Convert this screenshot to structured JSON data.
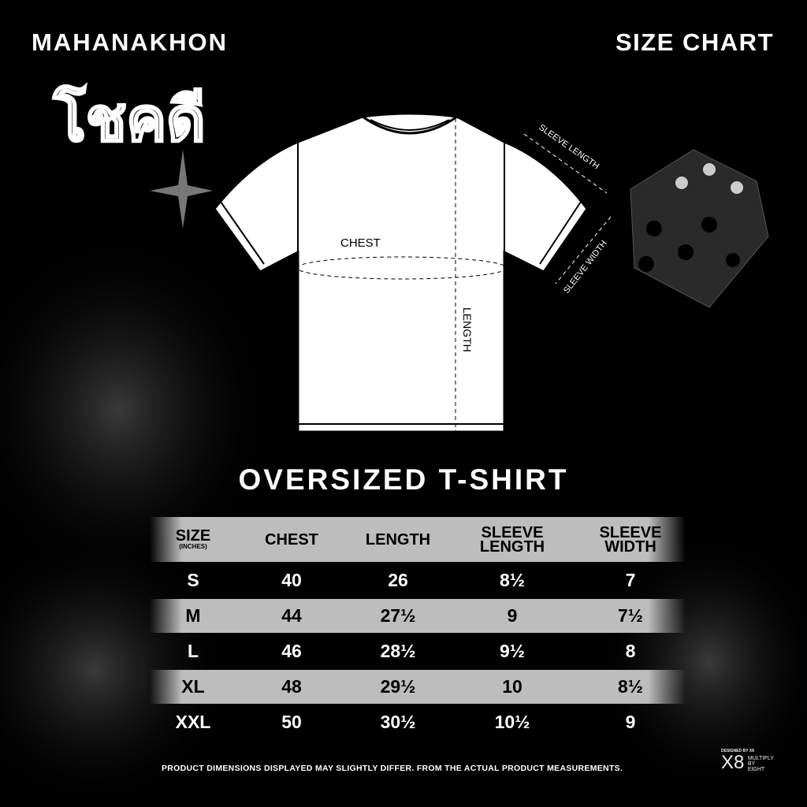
{
  "brand": "MAHANAKHON",
  "thai_logo": "โชคดี",
  "title": "SIZE CHART",
  "diagram_labels": {
    "chest": "CHEST",
    "length": "LENGTH",
    "sleeve_length": "SLEEVE LENGTH",
    "sleeve_width": "SLEEVE WIDTH"
  },
  "product": "OVERSIZED T-SHIRT",
  "table": {
    "headers": [
      {
        "label": "SIZE",
        "sub": "(INCHES)"
      },
      {
        "label": "CHEST"
      },
      {
        "label": "LENGTH"
      },
      {
        "label": "SLEEVE",
        "label2": "LENGTH"
      },
      {
        "label": "SLEEVE",
        "label2": "WIDTH"
      }
    ],
    "rows": [
      [
        "S",
        "40",
        "26",
        "8½",
        "7"
      ],
      [
        "M",
        "44",
        "27½",
        "9",
        "7½"
      ],
      [
        "L",
        "46",
        "28½",
        "9½",
        "8"
      ],
      [
        "XL",
        "48",
        "29½",
        "10",
        "8½"
      ],
      [
        "XXL",
        "50",
        "30½",
        "10½",
        "9"
      ]
    ]
  },
  "note": "PRODUCT DIMENSIONS DISPLAYED MAY SLIGHTLY DIFFER. FROM THE ACTUAL PRODUCT MEASUREMENTS.",
  "designer": {
    "credit": "DESIGNED BY X8",
    "mark": "X8",
    "line1": "MULTIPLY",
    "line2": "BY",
    "line3": "EIGHT"
  },
  "colors": {
    "background": "#000000",
    "row_grey": "#bdbdbd",
    "text": "#ffffff"
  }
}
